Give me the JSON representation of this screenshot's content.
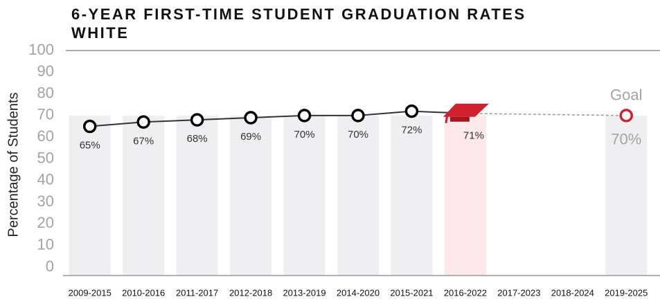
{
  "chart_data": {
    "type": "line",
    "title": "6-YEAR FIRST-TIME STUDENT GRADUATION RATES",
    "subtitle": "WHITE",
    "ylabel": "Percentage of Students",
    "categories": [
      "2009-2015",
      "2010-2016",
      "2011-2017",
      "2012-2018",
      "2013-2019",
      "2014-2020",
      "2015-2021",
      "2016-2022",
      "2017-2023",
      "2018-2024",
      "2019-2025"
    ],
    "values": [
      65,
      67,
      68,
      69,
      70,
      70,
      72,
      71,
      null,
      null,
      70
    ],
    "value_labels": [
      "65%",
      "67%",
      "68%",
      "69%",
      "70%",
      "70%",
      "72%",
      "71%",
      null,
      null,
      "70%"
    ],
    "goal_label": "Goal",
    "color": "#333333",
    "goal_color": "#d0202e",
    "ylim": [
      0,
      100
    ],
    "yticks": [
      0,
      10,
      20,
      30,
      40,
      50,
      60,
      70,
      80,
      90,
      100
    ]
  }
}
